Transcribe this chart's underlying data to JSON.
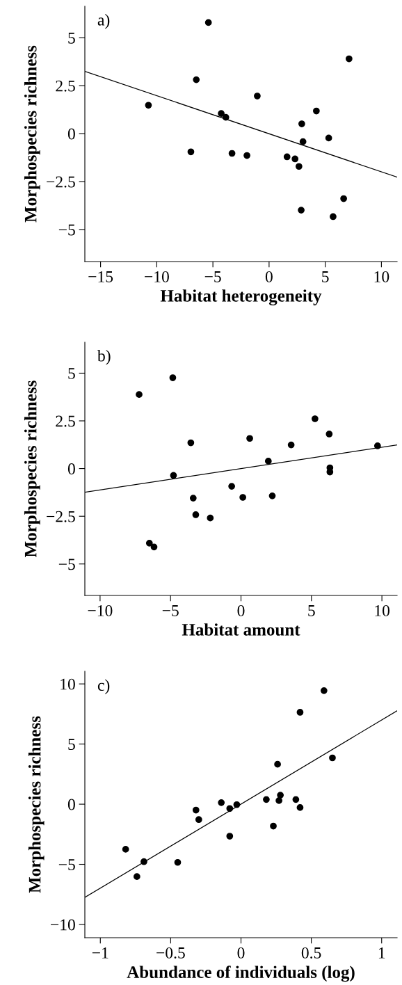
{
  "chart_data": [
    {
      "type": "scatter",
      "xlabel": "Habitat heterogeneity",
      "ylabel": "Morphospecies richness",
      "annotations": [
        "a)"
      ],
      "xlim": [
        -16.4,
        11.4
      ],
      "ylim": [
        -6.67,
        6.64
      ],
      "xticks": [
        {
          "value": -15,
          "label": "−15"
        },
        {
          "value": -10,
          "label": "−10"
        },
        {
          "value": -5,
          "label": "−5"
        },
        0,
        5,
        10
      ],
      "yticks": [
        {
          "value": -5,
          "label": "−5"
        },
        {
          "value": -2.5,
          "label": "−2.5"
        },
        0,
        2.5,
        5
      ],
      "grid": false,
      "series": [
        {
          "marker": "circle",
          "color": "#000000",
          "x": [
            -5.4,
            7.12,
            -6.48,
            -1.05,
            -10.74,
            4.21,
            -4.26,
            -3.85,
            2.91,
            5.31,
            3.02,
            -6.96,
            -3.3,
            -1.97,
            1.6,
            2.31,
            2.66,
            6.64,
            2.86,
            5.7
          ],
          "values": [
            5.79,
            3.9,
            2.81,
            1.96,
            1.48,
            1.18,
            1.05,
            0.85,
            0.51,
            -0.23,
            -0.42,
            -0.95,
            -1.03,
            -1.14,
            -1.21,
            -1.32,
            -1.71,
            -3.39,
            -3.99,
            -4.33
          ]
        },
        {
          "type": "line",
          "marker": "none",
          "color": "#000000",
          "x": [
            -16.4,
            11.4
          ],
          "values": [
            3.25,
            -2.27
          ]
        }
      ]
    },
    {
      "type": "scatter",
      "xlabel": "Habitat amount",
      "ylabel": "Morphospecies richness",
      "annotations": [
        "b)"
      ],
      "xlim": [
        -11.08,
        11.08
      ],
      "ylim": [
        -6.65,
        6.62
      ],
      "xticks": [
        {
          "value": -10,
          "label": "−10"
        },
        {
          "value": -5,
          "label": "−5"
        },
        0,
        5,
        10
      ],
      "yticks": [
        {
          "value": -5,
          "label": "−5"
        },
        {
          "value": -2.5,
          "label": "−2.5"
        },
        0,
        2.5,
        5
      ],
      "grid": false,
      "series": [
        {
          "marker": "circle",
          "color": "#000000",
          "x": [
            -4.84,
            -7.23,
            5.25,
            6.26,
            -3.56,
            0.62,
            3.56,
            9.69,
            1.94,
            6.31,
            6.31,
            -4.79,
            -0.66,
            -3.39,
            0.13,
            2.22,
            -3.21,
            -2.18,
            -6.5,
            -6.17
          ],
          "values": [
            4.76,
            3.88,
            2.61,
            1.81,
            1.35,
            1.58,
            1.24,
            1.19,
            0.39,
            0.04,
            -0.18,
            -0.36,
            -0.93,
            -1.55,
            -1.51,
            -1.43,
            -2.42,
            -2.59,
            -3.91,
            -4.11
          ]
        },
        {
          "type": "line",
          "marker": "none",
          "color": "#000000",
          "x": [
            -11.08,
            11.08
          ],
          "values": [
            -1.24,
            1.24
          ]
        }
      ]
    },
    {
      "type": "scatter",
      "xlabel": "Abundance of individuals (log)",
      "ylabel": "Morphospecies richness",
      "annotations": [
        "c)"
      ],
      "xlim": [
        -1.11,
        1.11
      ],
      "ylim": [
        -11.1,
        11.05
      ],
      "xticks": [
        {
          "value": -1,
          "label": "−1"
        },
        {
          "value": -0.5,
          "label": "−0.5"
        },
        0,
        0.5,
        1
      ],
      "yticks": [
        {
          "value": -10,
          "label": "−10"
        },
        {
          "value": -5,
          "label": "−5"
        },
        0,
        5,
        10
      ],
      "grid": false,
      "series": [
        {
          "marker": "circle",
          "color": "#000000",
          "x": [
            0.59,
            0.42,
            0.65,
            0.26,
            0.28,
            0.18,
            0.27,
            0.39,
            0.42,
            -0.14,
            -0.03,
            -0.08,
            -0.32,
            -0.3,
            0.23,
            -0.08,
            -0.82,
            -0.69,
            -0.45,
            -0.74
          ],
          "values": [
            9.44,
            7.64,
            3.85,
            3.32,
            0.75,
            0.39,
            0.3,
            0.39,
            -0.28,
            0.13,
            -0.04,
            -0.36,
            -0.49,
            -1.28,
            -1.82,
            -2.66,
            -3.75,
            -4.78,
            -4.84,
            -6.02
          ]
        },
        {
          "type": "line",
          "marker": "none",
          "color": "#000000",
          "x": [
            -1.11,
            1.11
          ],
          "values": [
            -7.75,
            7.77
          ]
        }
      ]
    }
  ]
}
